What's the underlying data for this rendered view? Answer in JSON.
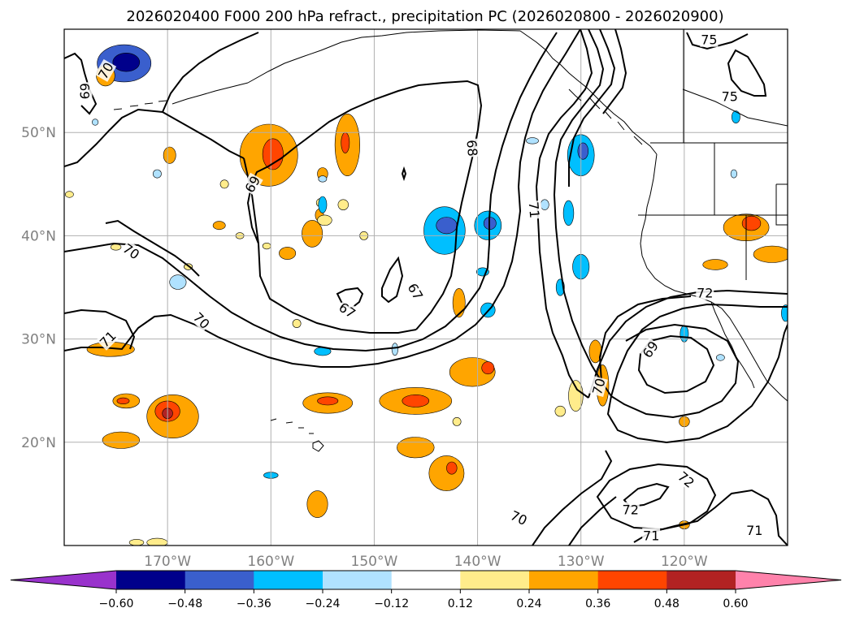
{
  "chart_data": {
    "type": "contour-map",
    "title": "2026020400 F000 200 hPa refract., precipitation PC (2026020800 - 2026020900)",
    "x_ticks": [
      "170°W",
      "160°W",
      "150°W",
      "140°W",
      "130°W",
      "120°W"
    ],
    "y_ticks": [
      "50°N",
      "40°N",
      "30°N",
      "20°N"
    ],
    "lon_range": [
      -180,
      -110
    ],
    "lat_range": [
      10,
      60
    ],
    "grid": true,
    "colorbar": {
      "position": "bottom",
      "extend": "both",
      "ticks": [
        "−0.60",
        "−0.48",
        "−0.36",
        "−0.24",
        "−0.12",
        "0.12",
        "0.24",
        "0.36",
        "0.48",
        "0.60"
      ],
      "bounds": [
        -0.6,
        -0.48,
        -0.36,
        -0.24,
        -0.12,
        0.12,
        0.24,
        0.36,
        0.48,
        0.6
      ],
      "colors": [
        "#9932cc",
        "#00008b",
        "#3a5fcd",
        "#00bfff",
        "#b0e2ff",
        "#ffffff",
        "#ffec8b",
        "#ffa500",
        "#ff4500",
        "#b22222",
        "#ff82ab"
      ]
    },
    "contour_labels": [
      {
        "text": "70",
        "lon": -176.0,
        "lat": 56.0,
        "rot": -60
      },
      {
        "text": "69",
        "lon": -178.0,
        "lat": 54.0,
        "rot": 90
      },
      {
        "text": "70",
        "lon": -173.5,
        "lat": 38.5,
        "rot": 35
      },
      {
        "text": "69",
        "lon": -161.8,
        "lat": 45.0,
        "rot": -60
      },
      {
        "text": "68",
        "lon": -140.5,
        "lat": 48.5,
        "rot": 85
      },
      {
        "text": "67",
        "lon": -152.6,
        "lat": 32.8,
        "rot": 35
      },
      {
        "text": "67",
        "lon": -146.0,
        "lat": 34.6,
        "rot": 60
      },
      {
        "text": "70",
        "lon": -166.7,
        "lat": 31.8,
        "rot": 45
      },
      {
        "text": "71",
        "lon": -175.8,
        "lat": 30.0,
        "rot": -45
      },
      {
        "text": "71",
        "lon": -134.5,
        "lat": 42.5,
        "rot": 85
      },
      {
        "text": "75",
        "lon": -117.6,
        "lat": 59.0,
        "rot": 0
      },
      {
        "text": "75",
        "lon": -115.6,
        "lat": 53.5,
        "rot": 0
      },
      {
        "text": "72",
        "lon": -118.0,
        "lat": 34.5,
        "rot": 0
      },
      {
        "text": "69",
        "lon": -123.3,
        "lat": 29.0,
        "rot": -55
      },
      {
        "text": "70",
        "lon": -128.3,
        "lat": 25.4,
        "rot": -75
      },
      {
        "text": "72",
        "lon": -119.8,
        "lat": 16.4,
        "rot": 40
      },
      {
        "text": "72",
        "lon": -125.2,
        "lat": 13.5,
        "rot": 0
      },
      {
        "text": "70",
        "lon": -136.0,
        "lat": 12.7,
        "rot": 25
      },
      {
        "text": "71",
        "lon": -123.2,
        "lat": 11.0,
        "rot": 0
      },
      {
        "text": "71",
        "lon": -113.2,
        "lat": 11.5,
        "rot": 0
      }
    ],
    "shaded_regions": [
      {
        "lon": -174.2,
        "lat": 56.7,
        "val": -0.4,
        "rx": 2.6,
        "ry": 1.8
      },
      {
        "lon": -174.0,
        "lat": 56.8,
        "val": -0.5,
        "rx": 1.3,
        "ry": 0.9
      },
      {
        "lon": -176.0,
        "lat": 55.5,
        "val": 0.3,
        "rx": 0.9,
        "ry": 1.0
      },
      {
        "lon": -160.2,
        "lat": 47.8,
        "val": 0.3,
        "rx": 2.8,
        "ry": 3.0
      },
      {
        "lon": -159.8,
        "lat": 47.9,
        "val": 0.38,
        "rx": 1.0,
        "ry": 1.5
      },
      {
        "lon": -152.6,
        "lat": 48.8,
        "val": 0.3,
        "rx": 1.2,
        "ry": 3.0
      },
      {
        "lon": -152.8,
        "lat": 49.0,
        "val": 0.38,
        "rx": 0.4,
        "ry": 1.0
      },
      {
        "lon": -169.8,
        "lat": 47.8,
        "val": 0.28,
        "rx": 0.6,
        "ry": 0.8
      },
      {
        "lon": -171.0,
        "lat": 46.0,
        "val": -0.15,
        "rx": 0.4,
        "ry": 0.4
      },
      {
        "lon": -164.5,
        "lat": 45.0,
        "val": 0.15,
        "rx": 0.4,
        "ry": 0.4
      },
      {
        "lon": -155.0,
        "lat": 46.0,
        "val": 0.25,
        "rx": 0.5,
        "ry": 0.6
      },
      {
        "lon": -155.2,
        "lat": 43.2,
        "val": 0.15,
        "rx": 0.4,
        "ry": 0.4
      },
      {
        "lon": -153.0,
        "lat": 43.0,
        "val": 0.2,
        "rx": 0.5,
        "ry": 0.5
      },
      {
        "lon": -155.3,
        "lat": 42.0,
        "val": 0.3,
        "rx": 0.4,
        "ry": 0.6
      },
      {
        "lon": -154.8,
        "lat": 41.5,
        "val": 0.15,
        "rx": 0.7,
        "ry": 0.5
      },
      {
        "lon": -156.0,
        "lat": 40.2,
        "val": 0.3,
        "rx": 1.0,
        "ry": 1.3
      },
      {
        "lon": -151.0,
        "lat": 40.0,
        "val": 0.2,
        "rx": 0.4,
        "ry": 0.4
      },
      {
        "lon": -158.4,
        "lat": 38.3,
        "val": 0.3,
        "rx": 0.8,
        "ry": 0.6
      },
      {
        "lon": -160.4,
        "lat": 39.0,
        "val": 0.15,
        "rx": 0.4,
        "ry": 0.3
      },
      {
        "lon": -163.0,
        "lat": 40.0,
        "val": 0.15,
        "rx": 0.4,
        "ry": 0.3
      },
      {
        "lon": -165.0,
        "lat": 41.0,
        "val": 0.25,
        "rx": 0.6,
        "ry": 0.4
      },
      {
        "lon": -175.0,
        "lat": 38.9,
        "val": 0.2,
        "rx": 0.5,
        "ry": 0.3
      },
      {
        "lon": -168.0,
        "lat": 37.0,
        "val": 0.15,
        "rx": 0.4,
        "ry": 0.3
      },
      {
        "lon": -157.5,
        "lat": 31.5,
        "val": 0.15,
        "rx": 0.4,
        "ry": 0.4
      },
      {
        "lon": -155.0,
        "lat": 45.5,
        "val": -0.15,
        "rx": 0.4,
        "ry": 0.3
      },
      {
        "lon": -155.0,
        "lat": 43.0,
        "val": -0.3,
        "rx": 0.4,
        "ry": 0.8
      },
      {
        "lon": -143.2,
        "lat": 40.5,
        "val": -0.3,
        "rx": 2.0,
        "ry": 2.3
      },
      {
        "lon": -143.0,
        "lat": 41.0,
        "val": -0.45,
        "rx": 1.0,
        "ry": 0.8
      },
      {
        "lon": -139.0,
        "lat": 41.0,
        "val": -0.3,
        "rx": 1.3,
        "ry": 1.4
      },
      {
        "lon": -138.8,
        "lat": 41.2,
        "val": -0.4,
        "rx": 0.6,
        "ry": 0.6
      },
      {
        "lon": -139.5,
        "lat": 36.5,
        "val": -0.25,
        "rx": 0.6,
        "ry": 0.4
      },
      {
        "lon": -139.0,
        "lat": 32.8,
        "val": -0.25,
        "rx": 0.7,
        "ry": 0.7
      },
      {
        "lon": -148.0,
        "lat": 29.0,
        "val": -0.2,
        "rx": 0.3,
        "ry": 0.6
      },
      {
        "lon": -141.8,
        "lat": 33.5,
        "val": 0.3,
        "rx": 0.6,
        "ry": 1.4
      },
      {
        "lon": -130.0,
        "lat": 47.8,
        "val": -0.3,
        "rx": 1.3,
        "ry": 2.0
      },
      {
        "lon": -129.8,
        "lat": 48.2,
        "val": -0.42,
        "rx": 0.5,
        "ry": 0.8
      },
      {
        "lon": -131.2,
        "lat": 42.2,
        "val": -0.3,
        "rx": 0.5,
        "ry": 1.2
      },
      {
        "lon": -133.5,
        "lat": 43.0,
        "val": -0.2,
        "rx": 0.4,
        "ry": 0.5
      },
      {
        "lon": -130.0,
        "lat": 37.0,
        "val": -0.3,
        "rx": 0.8,
        "ry": 1.2
      },
      {
        "lon": -132.0,
        "lat": 35.0,
        "val": -0.25,
        "rx": 0.4,
        "ry": 0.8
      },
      {
        "lon": -134.7,
        "lat": 49.2,
        "val": -0.2,
        "rx": 0.6,
        "ry": 0.3
      },
      {
        "lon": -128.6,
        "lat": 28.8,
        "val": 0.3,
        "rx": 0.6,
        "ry": 1.1
      },
      {
        "lon": -127.9,
        "lat": 25.5,
        "val": 0.35,
        "rx": 0.6,
        "ry": 2.0
      },
      {
        "lon": -130.5,
        "lat": 24.5,
        "val": 0.2,
        "rx": 0.7,
        "ry": 1.5
      },
      {
        "lon": -132.0,
        "lat": 23.0,
        "val": 0.15,
        "rx": 0.5,
        "ry": 0.5
      },
      {
        "lon": -120.0,
        "lat": 22.0,
        "val": 0.25,
        "rx": 0.5,
        "ry": 0.5
      },
      {
        "lon": -120.0,
        "lat": 12.0,
        "val": 0.25,
        "rx": 0.5,
        "ry": 0.4
      },
      {
        "lon": -120.0,
        "lat": 30.5,
        "val": -0.3,
        "rx": 0.4,
        "ry": 0.8
      },
      {
        "lon": -116.5,
        "lat": 28.2,
        "val": -0.15,
        "rx": 0.4,
        "ry": 0.3
      },
      {
        "lon": -110.2,
        "lat": 32.5,
        "val": -0.25,
        "rx": 0.4,
        "ry": 0.8
      },
      {
        "lon": -115.0,
        "lat": 51.5,
        "val": -0.25,
        "rx": 0.4,
        "ry": 0.6
      },
      {
        "lon": -115.2,
        "lat": 46.0,
        "val": -0.15,
        "rx": 0.3,
        "ry": 0.4
      },
      {
        "lon": -114.0,
        "lat": 40.8,
        "val": 0.3,
        "rx": 2.2,
        "ry": 1.3
      },
      {
        "lon": -113.5,
        "lat": 41.2,
        "val": 0.38,
        "rx": 0.9,
        "ry": 0.7
      },
      {
        "lon": -111.5,
        "lat": 38.2,
        "val": 0.3,
        "rx": 1.8,
        "ry": 0.8
      },
      {
        "lon": -117.0,
        "lat": 37.2,
        "val": 0.25,
        "rx": 1.2,
        "ry": 0.5
      },
      {
        "lon": -175.5,
        "lat": 29.0,
        "val": 0.25,
        "rx": 2.3,
        "ry": 0.7
      },
      {
        "lon": -174.0,
        "lat": 24.0,
        "val": 0.3,
        "rx": 1.3,
        "ry": 0.7
      },
      {
        "lon": -174.3,
        "lat": 24.0,
        "val": 0.38,
        "rx": 0.6,
        "ry": 0.3
      },
      {
        "lon": -169.5,
        "lat": 22.5,
        "val": 0.3,
        "rx": 2.5,
        "ry": 2.1
      },
      {
        "lon": -170.0,
        "lat": 23.0,
        "val": 0.4,
        "rx": 1.2,
        "ry": 1.0
      },
      {
        "lon": -170.0,
        "lat": 22.8,
        "val": 0.5,
        "rx": 0.5,
        "ry": 0.5
      },
      {
        "lon": -174.5,
        "lat": 20.2,
        "val": 0.28,
        "rx": 1.8,
        "ry": 0.8
      },
      {
        "lon": -154.5,
        "lat": 23.8,
        "val": 0.3,
        "rx": 2.4,
        "ry": 1.0
      },
      {
        "lon": -154.5,
        "lat": 24.0,
        "val": 0.38,
        "rx": 1.0,
        "ry": 0.4
      },
      {
        "lon": -146.0,
        "lat": 24.0,
        "val": 0.3,
        "rx": 3.5,
        "ry": 1.3
      },
      {
        "lon": -146.0,
        "lat": 24.0,
        "val": 0.4,
        "rx": 1.3,
        "ry": 0.6
      },
      {
        "lon": -140.5,
        "lat": 26.8,
        "val": 0.3,
        "rx": 2.2,
        "ry": 1.4
      },
      {
        "lon": -139.0,
        "lat": 27.2,
        "val": 0.38,
        "rx": 0.6,
        "ry": 0.6
      },
      {
        "lon": -146.0,
        "lat": 19.5,
        "val": 0.3,
        "rx": 1.8,
        "ry": 1.0
      },
      {
        "lon": -143.0,
        "lat": 17.0,
        "val": 0.3,
        "rx": 1.7,
        "ry": 1.7
      },
      {
        "lon": -142.5,
        "lat": 17.5,
        "val": 0.4,
        "rx": 0.5,
        "ry": 0.6
      },
      {
        "lon": -142.0,
        "lat": 22.0,
        "val": 0.2,
        "rx": 0.4,
        "ry": 0.4
      },
      {
        "lon": -155.5,
        "lat": 14.0,
        "val": 0.3,
        "rx": 1.0,
        "ry": 1.3
      },
      {
        "lon": -155.0,
        "lat": 28.8,
        "val": -0.25,
        "rx": 0.8,
        "ry": 0.4
      },
      {
        "lon": -160.0,
        "lat": 16.8,
        "val": -0.25,
        "rx": 0.7,
        "ry": 0.3
      },
      {
        "lon": -169.0,
        "lat": 35.5,
        "val": -0.2,
        "rx": 0.8,
        "ry": 0.7
      },
      {
        "lon": -177.0,
        "lat": 51.0,
        "val": -0.15,
        "rx": 0.3,
        "ry": 0.3
      },
      {
        "lon": -179.5,
        "lat": 44.0,
        "val": 0.15,
        "rx": 0.4,
        "ry": 0.3
      },
      {
        "lon": -168.0,
        "lat": 37.0,
        "val": 0.2,
        "rx": 0.4,
        "ry": 0.3
      },
      {
        "lon": -171.0,
        "lat": 10.3,
        "val": 0.2,
        "rx": 1.0,
        "ry": 0.4
      },
      {
        "lon": -173.0,
        "lat": 10.3,
        "val": 0.18,
        "rx": 0.7,
        "ry": 0.3
      }
    ]
  }
}
